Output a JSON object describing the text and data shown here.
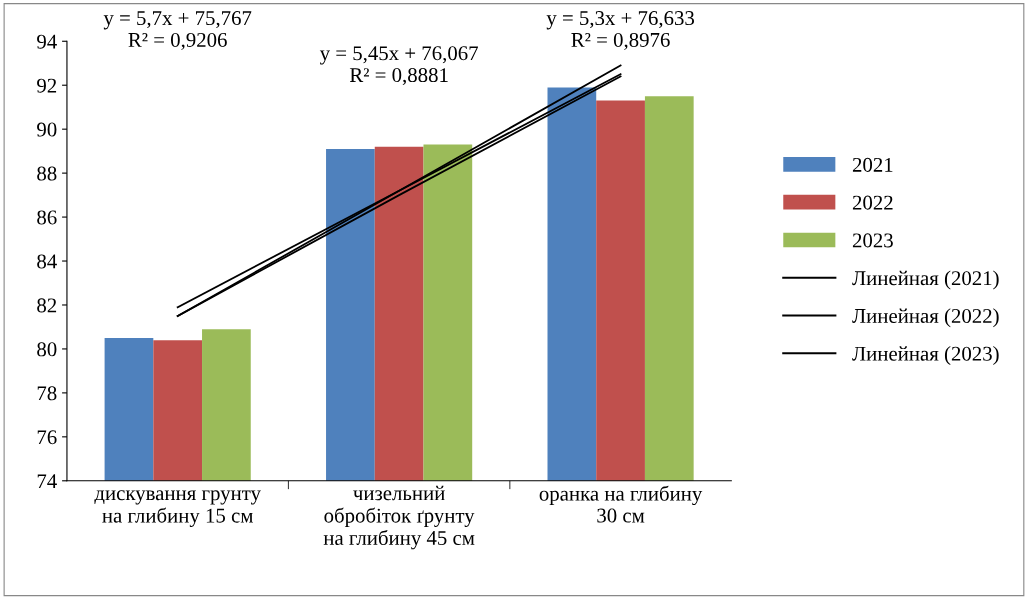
{
  "chart_data": {
    "type": "bar",
    "categories": [
      "дискування грунту\nна глибину 15 см",
      "чизельний\nобробіток ґрунту\nна глибину 45 см",
      "оранка на глибину\n30 см"
    ],
    "series": [
      {
        "name": "2021",
        "color": "#4f81bd",
        "values": [
          80.5,
          89.1,
          91.9
        ]
      },
      {
        "name": "2022",
        "color": "#c0504d",
        "values": [
          80.4,
          89.2,
          91.3
        ]
      },
      {
        "name": "2023",
        "color": "#9bbb59",
        "values": [
          80.9,
          89.3,
          91.5
        ]
      },
      {
        "name": "Линейная (2021)",
        "type": "line",
        "color": "#000000",
        "values": [
          81.5,
          87.2,
          92.9
        ]
      },
      {
        "name": "Линейная (2022)",
        "type": "line",
        "color": "#000000",
        "values": [
          81.5,
          87.0,
          92.4
        ]
      },
      {
        "name": "Линейная (2023)",
        "type": "line",
        "color": "#000000",
        "values": [
          81.9,
          87.2,
          92.5
        ]
      }
    ],
    "annotations": [
      "y = 5,7x + 75,767\nR² = 0,9206",
      "y = 5,45x + 76,067\nR² = 0,8881",
      "y = 5,3x + 76,633\nR² = 0,8976"
    ],
    "ylim": [
      74,
      94
    ],
    "yticks": [
      74,
      76,
      78,
      80,
      82,
      84,
      86,
      88,
      90,
      92,
      94
    ],
    "legend": "right",
    "grid": false
  }
}
